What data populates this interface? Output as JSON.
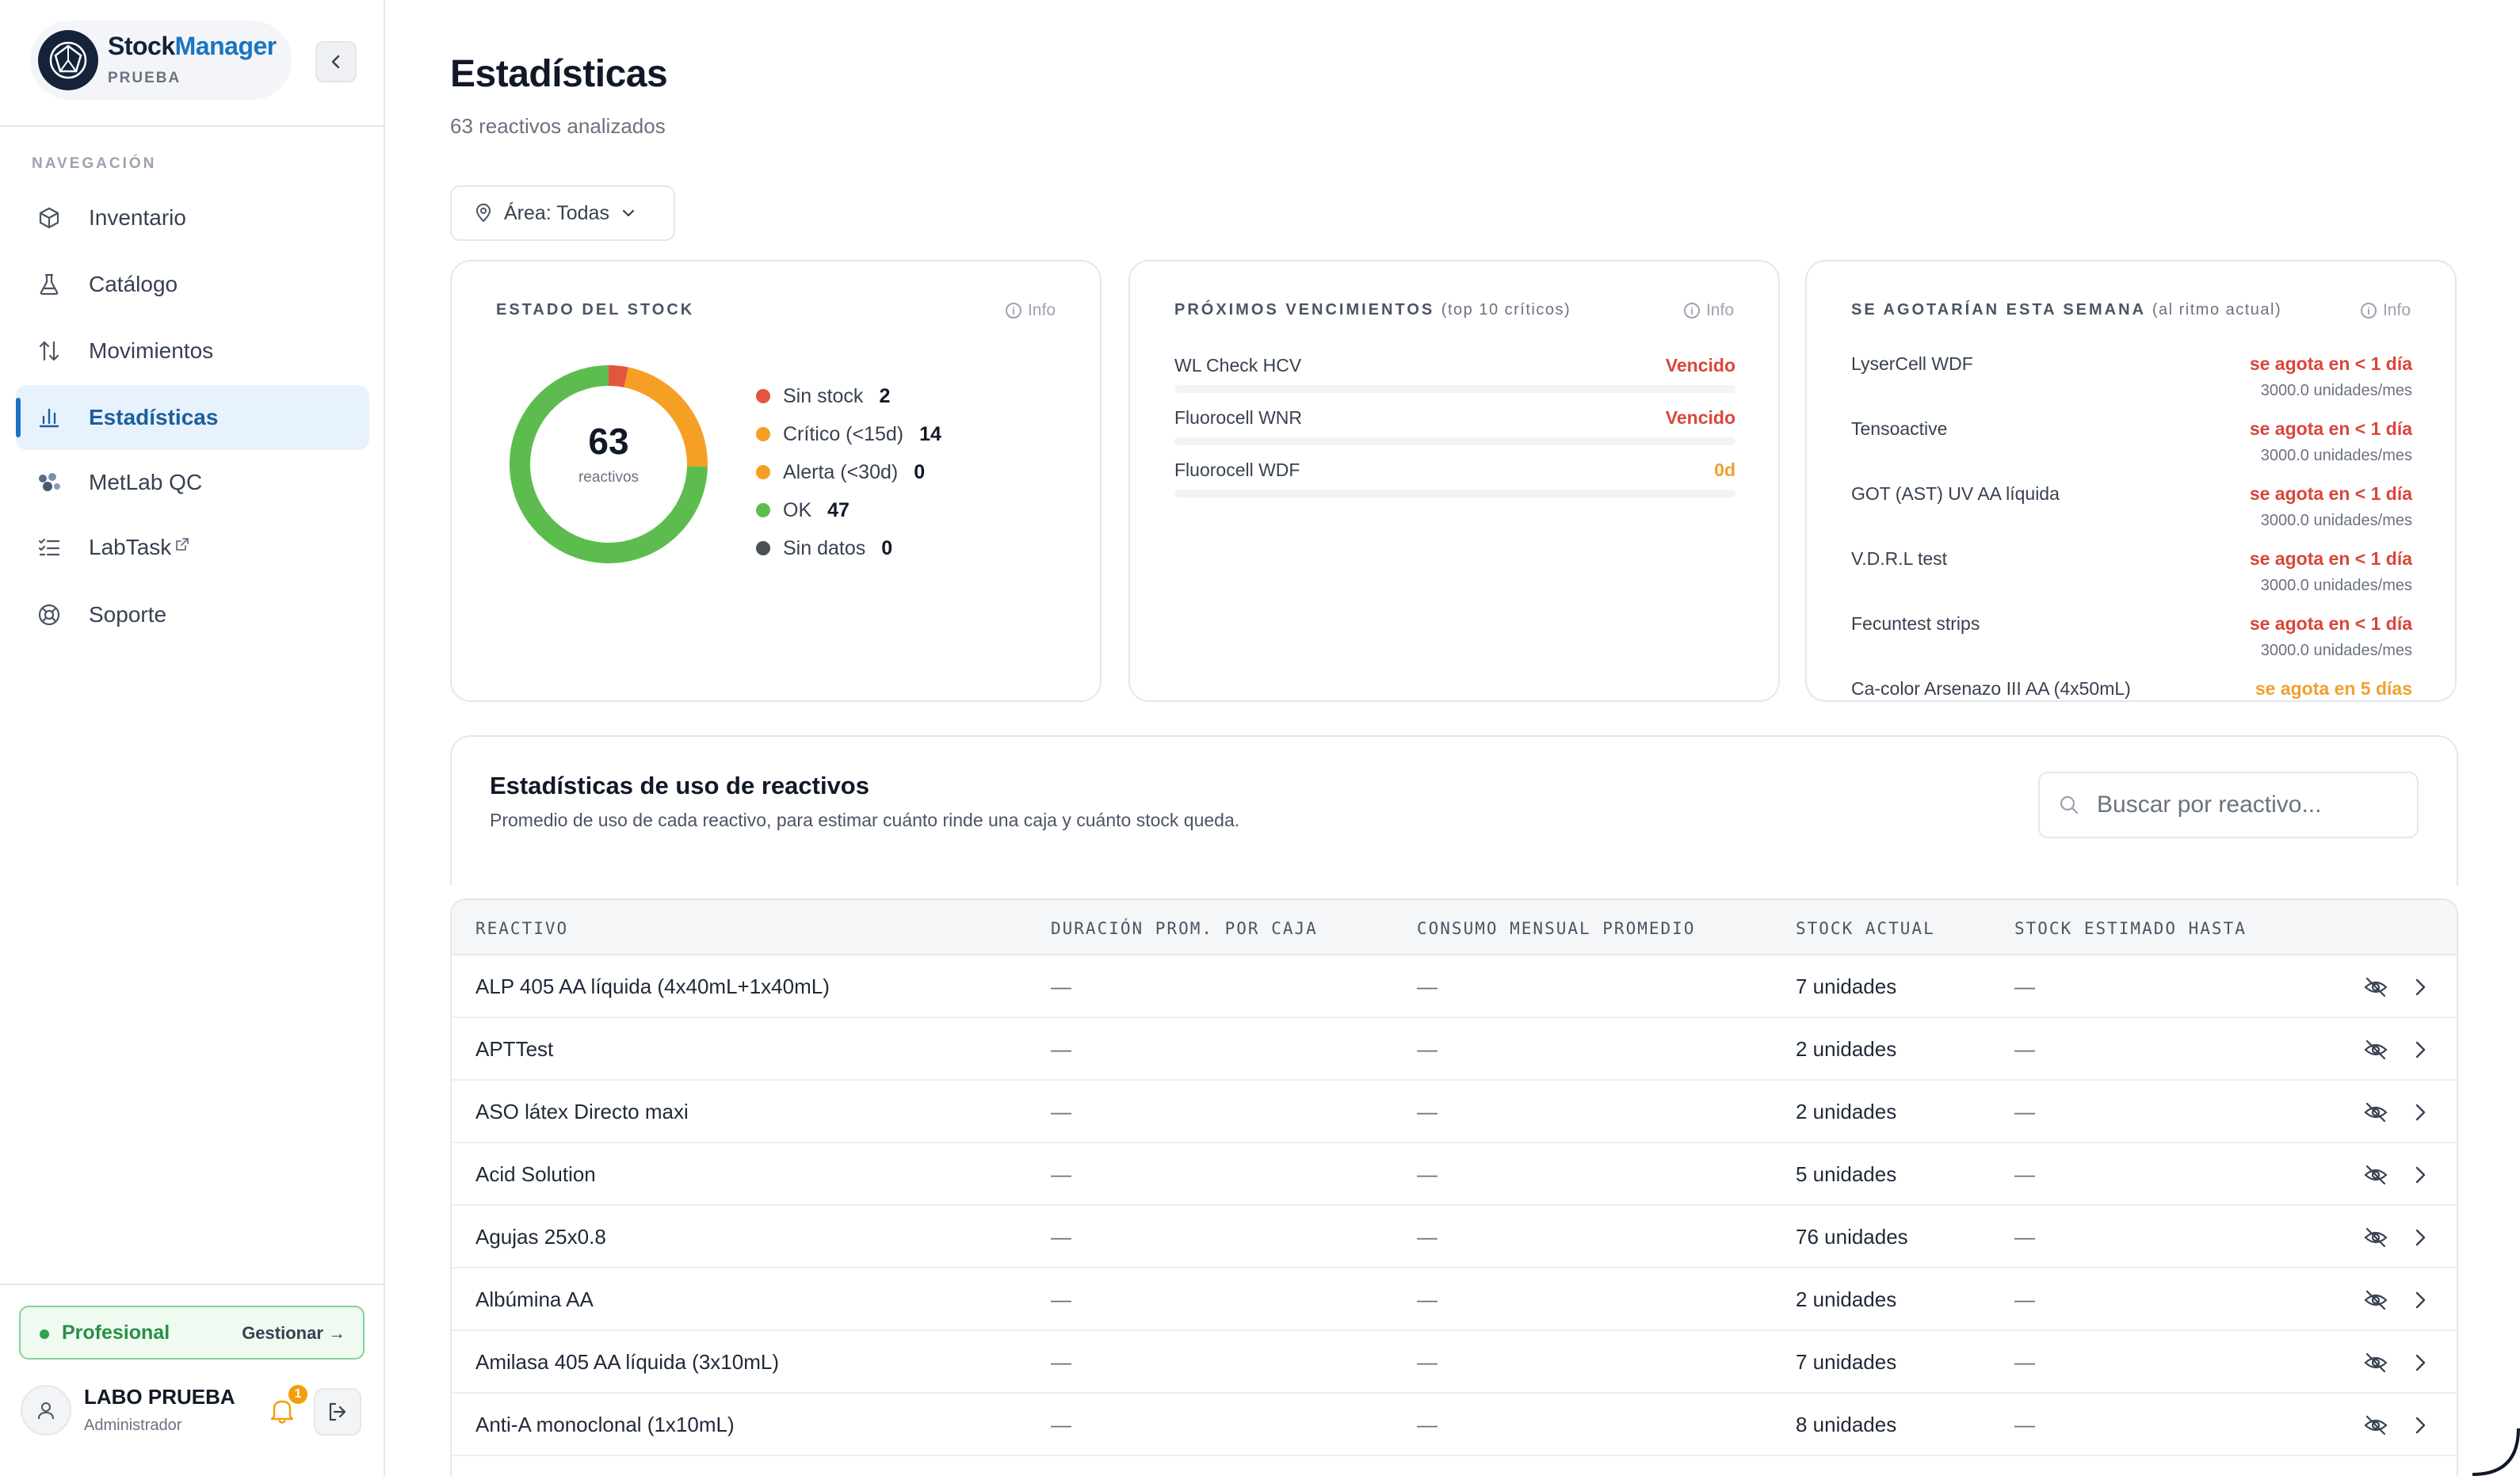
{
  "brand": {
    "name_part1": "Stock",
    "name_part2": "Manager",
    "env": "PRUEBA"
  },
  "nav": {
    "title": "NAVEGACIÓN",
    "items": [
      {
        "label": "Inventario",
        "icon": "box-icon"
      },
      {
        "label": "Catálogo",
        "icon": "flask-icon"
      },
      {
        "label": "Movimientos",
        "icon": "arrows-updown-icon"
      },
      {
        "label": "Estadísticas",
        "icon": "bar-chart-icon",
        "active": true
      },
      {
        "label": "MetLab QC",
        "icon": "molecule-icon"
      },
      {
        "label": "LabTask",
        "icon": "checklist-icon"
      },
      {
        "label": "Soporte",
        "icon": "lifebuoy-icon"
      }
    ]
  },
  "plan": {
    "name": "Profesional",
    "manage": "Gestionar →"
  },
  "user": {
    "name": "LABO PRUEBA",
    "role": "Administrador",
    "notifications": "1"
  },
  "page": {
    "title": "Estadísticas",
    "subtitle": "63 reactivos analizados",
    "area_filter": "Área: Todas"
  },
  "stock_card": {
    "title": "ESTADO DEL STOCK",
    "info": "Info",
    "total": "63",
    "total_label": "reactivos",
    "legend": [
      {
        "label": "Sin stock",
        "value": "2",
        "color": "#e4553f"
      },
      {
        "label": "Crítico (<15d)",
        "value": "14",
        "color": "#f5a024"
      },
      {
        "label": "Alerta (<30d)",
        "value": "0",
        "color": "#f5a024"
      },
      {
        "label": "OK",
        "value": "47",
        "color": "#5cbd4e"
      },
      {
        "label": "Sin datos",
        "value": "0",
        "color": "#4b4f56"
      }
    ]
  },
  "venc_card": {
    "title": "PRÓXIMOS VENCIMIENTOS",
    "title_note": "(top 10 críticos)",
    "info": "Info",
    "items": [
      {
        "name": "WL Check HCV",
        "status": "Vencido",
        "color": "#d9463a"
      },
      {
        "name": "Fluorocell WNR",
        "status": "Vencido",
        "color": "#d9463a"
      },
      {
        "name": "Fluorocell WDF",
        "status": "0d",
        "color": "#f0a030"
      }
    ]
  },
  "ago_card": {
    "title": "SE AGOTARÍAN ESTA SEMANA",
    "title_note": "(al ritmo actual)",
    "info": "Info",
    "items": [
      {
        "name": "LyserCell WDF",
        "status": "se agota en < 1 día",
        "rate": "3000.0 unidades/mes",
        "color": "#d9463a"
      },
      {
        "name": "Tensoactive",
        "status": "se agota en < 1 día",
        "rate": "3000.0 unidades/mes",
        "color": "#d9463a"
      },
      {
        "name": "GOT (AST) UV AA líquida",
        "status": "se agota en < 1 día",
        "rate": "3000.0 unidades/mes",
        "color": "#d9463a"
      },
      {
        "name": "V.D.R.L test",
        "status": "se agota en < 1 día",
        "rate": "3000.0 unidades/mes",
        "color": "#d9463a"
      },
      {
        "name": "Fecuntest strips",
        "status": "se agota en < 1 día",
        "rate": "3000.0 unidades/mes",
        "color": "#d9463a"
      },
      {
        "name": "Ca-color Arsenazo III AA (4x50mL)",
        "status": "se agota en 5 días",
        "rate": "",
        "color": "#f0a030"
      }
    ]
  },
  "usage": {
    "title": "Estadísticas de uso de reactivos",
    "description": "Promedio de uso de cada reactivo, para estimar cuánto rinde una caja y cuánto stock queda.",
    "search_placeholder": "Buscar por reactivo...",
    "columns": [
      "REACTIVO",
      "DURACIÓN PROM. POR CAJA",
      "CONSUMO MENSUAL PROMEDIO",
      "STOCK ACTUAL",
      "STOCK ESTIMADO HASTA"
    ],
    "rows": [
      {
        "name": "ALP 405 AA líquida (4x40mL+1x40mL)",
        "duration": "—",
        "consumption": "—",
        "stock": "7 unidades",
        "until": "—"
      },
      {
        "name": "APTTest",
        "duration": "—",
        "consumption": "—",
        "stock": "2 unidades",
        "until": "—"
      },
      {
        "name": "ASO látex Directo maxi",
        "duration": "—",
        "consumption": "—",
        "stock": "2 unidades",
        "until": "—"
      },
      {
        "name": "Acid Solution",
        "duration": "—",
        "consumption": "—",
        "stock": "5 unidades",
        "until": "—"
      },
      {
        "name": "Agujas 25x0.8",
        "duration": "—",
        "consumption": "—",
        "stock": "76 unidades",
        "until": "—"
      },
      {
        "name": "Albúmina AA",
        "duration": "—",
        "consumption": "—",
        "stock": "2 unidades",
        "until": "—"
      },
      {
        "name": "Amilasa 405 AA líquida (3x10mL)",
        "duration": "—",
        "consumption": "—",
        "stock": "7 unidades",
        "until": "—"
      },
      {
        "name": "Anti-A monoclonal (1x10mL)",
        "duration": "—",
        "consumption": "—",
        "stock": "8 unidades",
        "until": "—"
      }
    ]
  }
}
